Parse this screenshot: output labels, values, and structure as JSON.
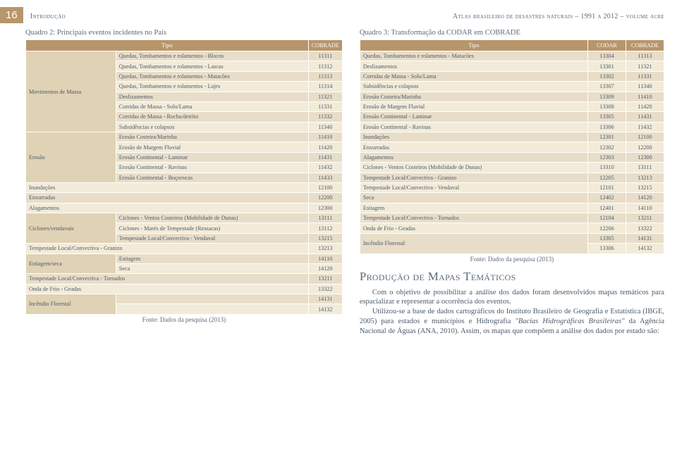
{
  "page_number": "16",
  "section_label": "Introdução",
  "document_title": "Atlas brasileiro de desastres naturais – 1991 a 2012 – volume acre",
  "quadro2": {
    "title": "Quadro 2: Principais eventos incidentes no País",
    "header_tipo": "Tipo",
    "header_cobrade": "COBRADE",
    "fonte": "Fonte: Dados da pesquisa (2013)",
    "colors": {
      "header_bg": "#b8956a",
      "row_even": "#e8ddc8",
      "row_odd": "#f2ebd9",
      "cat_bg": "#e0d2b5"
    },
    "groups": [
      {
        "cat": "Movimentos de Massa",
        "rows": [
          {
            "t": "Quedas, Tombamentos e rolamentos - Blocos",
            "c": "11311"
          },
          {
            "t": "Quedas, Tombamentos e rolamentos - Lascas",
            "c": "11312"
          },
          {
            "t": "Quedas, Tombamentos e rolamentos - Matacões",
            "c": "11313"
          },
          {
            "t": "Quedas, Tombamentos e rolamentos - Lajes",
            "c": "11314"
          },
          {
            "t": "Deslizamentos",
            "c": "11321"
          },
          {
            "t": "Corridas de Massa - Solo/Lama",
            "c": "11331"
          },
          {
            "t": "Corridas de Massa - Rocha/detrito",
            "c": "11332"
          },
          {
            "t": "Subsidências e colapsos",
            "c": "11340"
          }
        ]
      },
      {
        "cat": "Erosão",
        "rows": [
          {
            "t": "Erosão Costeira/Marinha",
            "c": "11410"
          },
          {
            "t": "Erosão de Margem Fluvial",
            "c": "11420"
          },
          {
            "t": "Erosão Continental - Laminar",
            "c": "11431"
          },
          {
            "t": "Erosão Continental - Ravinas",
            "c": "11432"
          },
          {
            "t": "Erosão Continental - Boçorocas",
            "c": "11433"
          }
        ]
      },
      {
        "cat": "Inundações",
        "span_full": true,
        "rows": [
          {
            "t": "",
            "c": "12100"
          }
        ]
      },
      {
        "cat": "Enxurradas",
        "span_full": true,
        "rows": [
          {
            "t": "",
            "c": "12200"
          }
        ]
      },
      {
        "cat": "Alagamentos",
        "span_full": true,
        "rows": [
          {
            "t": "",
            "c": "12300"
          }
        ]
      },
      {
        "cat": "Ciclones/vendavais",
        "rows": [
          {
            "t": "Ciclones - Ventos Costeiros (Mobilidade de Dunas)",
            "c": "13111"
          },
          {
            "t": "Ciclones - Marés de Tempestade (Ressacas)",
            "c": "13112"
          },
          {
            "t": "Tempestade Local/Convectiva - Vendaval",
            "c": "13215"
          }
        ]
      },
      {
        "cat": "Tempestade Local/Convectiva - Granizo",
        "span_full": true,
        "rows": [
          {
            "t": "",
            "c": "13213"
          }
        ]
      },
      {
        "cat": "Estiagem/seca",
        "rows": [
          {
            "t": "Estiagem",
            "c": "14110"
          },
          {
            "t": "Seca",
            "c": "14120"
          }
        ]
      },
      {
        "cat": "Tempestade Local/Convectiva - Tornados",
        "span_full": true,
        "rows": [
          {
            "t": "",
            "c": "13211"
          }
        ]
      },
      {
        "cat": "Onda de Frio - Geadas",
        "span_full": true,
        "rows": [
          {
            "t": "",
            "c": "13322"
          }
        ]
      },
      {
        "cat": "Incêndio Florestal",
        "rows": [
          {
            "t": "",
            "c": "14131"
          },
          {
            "t": "",
            "c": "14132"
          }
        ]
      }
    ]
  },
  "quadro3": {
    "title": "Quadro 3: Transformação da CODAR em COBRADE",
    "header_tipo": "Tipo",
    "header_codar": "CODAR",
    "header_cobrade": "COBRADE",
    "fonte": "Fonte: Dados da pesquisa (2013)",
    "rows": [
      {
        "t": "Quedas, Tombamentos e rolamentos - Matacões",
        "a": "13304",
        "b": "11313"
      },
      {
        "t": "Deslizamentos",
        "a": "13301",
        "b": "11321"
      },
      {
        "t": "Corridas de Massa - Solo/Lama",
        "a": "13302",
        "b": "11331"
      },
      {
        "t": "Subsidências e colapsos",
        "a": "13307",
        "b": "11340"
      },
      {
        "t": "Erosão Costeira/Marinha",
        "a": "13309",
        "b": "11410"
      },
      {
        "t": "Erosão de Margem Fluvial",
        "a": "13308",
        "b": "11420"
      },
      {
        "t": "Erosão Continental - Laminar",
        "a": "13305",
        "b": "11431"
      },
      {
        "t": "Erosão Continental - Ravinas",
        "a": "13306",
        "b": "11432"
      },
      {
        "t": "Inundações",
        "a": "12301",
        "b": "12100"
      },
      {
        "t": "Enxurradas",
        "a": "12302",
        "b": "12200"
      },
      {
        "t": "Alagamentos",
        "a": "12303",
        "b": "12300"
      },
      {
        "t": "Ciclones - Ventos Costeiros (Mobilidade de Dunas)",
        "a": "13310",
        "b": "13111"
      },
      {
        "t": "Tempestade Local/Convectiva - Granizo",
        "a": "12205",
        "b": "13213"
      },
      {
        "t": "Tempestade Local/Convectiva - Vendaval",
        "a": "12101",
        "b": "13215"
      },
      {
        "t": "Seca",
        "a": "12402",
        "b": "14120"
      },
      {
        "t": "Estiagem",
        "a": "12401",
        "b": "14110"
      },
      {
        "t": "Tempestade Local/Convectiva - Tornados",
        "a": "12104",
        "b": "13211"
      },
      {
        "t": "Onda de Frio - Geadas",
        "a": "12206",
        "b": "13322"
      }
    ],
    "incendio": {
      "label": "Incêndio Florestal",
      "rows": [
        {
          "a": "13305",
          "b": "14131"
        },
        {
          "a": "13306",
          "b": "14132"
        }
      ]
    }
  },
  "heading2": "Produção de Mapas Temáticos",
  "para1": "Com o objetivo de possibilitar a análise dos dados foram desenvolvidos mapas temáticos para espacializar e representar a ocorrência dos eventos.",
  "para2_a": "Utilizou-se a base de dados cartográficos do Instituto Brasileiro de Geografia e Estatística (IBGE, 2005) para estados e municípios e Hidrografia ",
  "para2_i": "\"Bacias Hidrográficas Brasileiras\"",
  "para2_b": " da Agência Nacional de Águas (ANA, 2010). Assim, os mapas que compõem a análise dos dados por estado são:"
}
